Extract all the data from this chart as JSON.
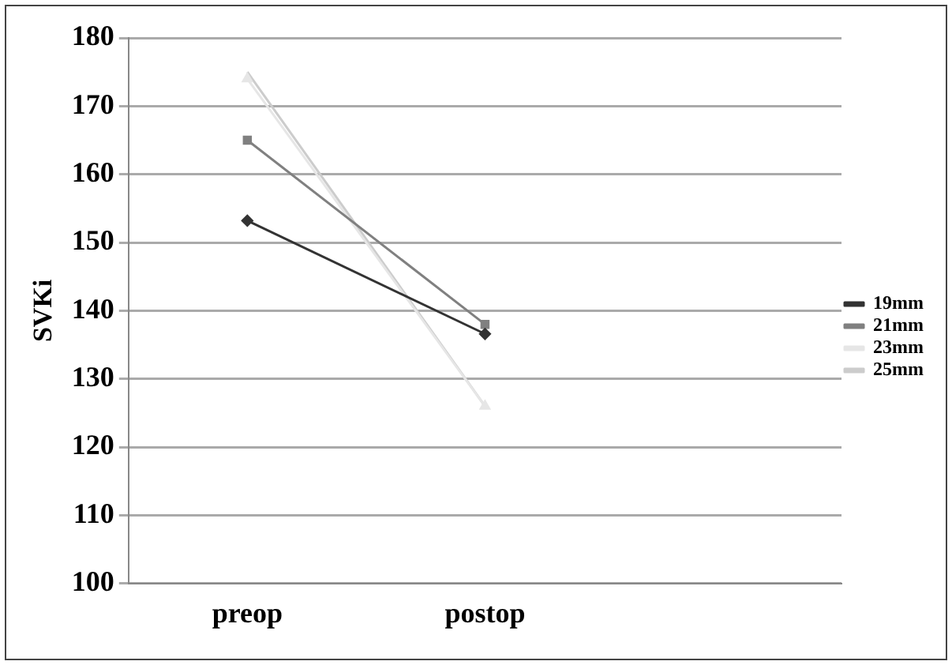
{
  "chart_data": {
    "type": "line",
    "ylabel": "SVKi",
    "categories": [
      "preop",
      "postop",
      null
    ],
    "series": [
      {
        "name": "19mm",
        "color": "#333333",
        "marker": "diamond",
        "values": [
          153.2,
          136.6,
          null
        ]
      },
      {
        "name": "21mm",
        "color": "#808080",
        "marker": "square",
        "values": [
          165,
          138,
          null
        ]
      },
      {
        "name": "23mm",
        "color": "#e6e6e6",
        "marker": "triangle",
        "values": [
          174,
          126,
          null
        ]
      },
      {
        "name": "25mm",
        "color": "#cccccc",
        "marker": "none",
        "values": [
          175,
          126,
          null
        ]
      }
    ],
    "ylim": [
      100,
      180
    ],
    "yticks": [
      100,
      110,
      120,
      130,
      140,
      150,
      160,
      170,
      180
    ],
    "grid": "y",
    "legend": "right"
  }
}
